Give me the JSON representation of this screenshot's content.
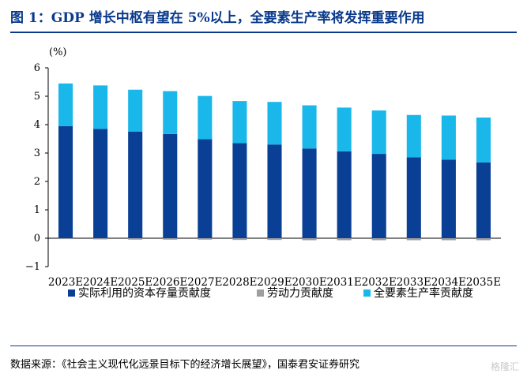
{
  "figure": {
    "title": "图 1：GDP 增长中枢有望在 5%以上，全要素生产率将发挥重要作用",
    "source": "数据来源：《社会主义现代化远景目标下的经济增长展望》，国泰君安证券研究",
    "watermark": "格隆汇"
  },
  "colors": {
    "capital": "#0a3f96",
    "labor": "#9e9e9e",
    "tfp": "#1ab8ea",
    "title": "#0a3a8c"
  },
  "chart_data": {
    "type": "bar",
    "stacked": true,
    "unit_label": "(%)",
    "categories": [
      "2023E",
      "2024E",
      "2025E",
      "2026E",
      "2027E",
      "2028E",
      "2029E",
      "2030E",
      "2031E",
      "2032E",
      "2033E",
      "2034E",
      "2035E"
    ],
    "series": [
      {
        "name": "实际利用的资本存量贡献度",
        "values": [
          3.95,
          3.85,
          3.75,
          3.67,
          3.49,
          3.35,
          3.3,
          3.16,
          3.06,
          2.97,
          2.85,
          2.77,
          2.67
        ]
      },
      {
        "name": "劳动力贡献度",
        "values": [
          -0.03,
          -0.04,
          -0.05,
          -0.05,
          -0.05,
          -0.06,
          -0.06,
          -0.07,
          -0.07,
          -0.07,
          -0.07,
          -0.07,
          -0.07
        ]
      },
      {
        "name": "全要素生产率贡献度",
        "values": [
          1.5,
          1.53,
          1.48,
          1.51,
          1.52,
          1.48,
          1.5,
          1.52,
          1.54,
          1.53,
          1.49,
          1.55,
          1.58
        ]
      }
    ],
    "ylim": [
      -1,
      6
    ],
    "yticks": [
      -1,
      0,
      1,
      2,
      3,
      4,
      5,
      6
    ],
    "grid": false,
    "legend_position": "bottom"
  }
}
